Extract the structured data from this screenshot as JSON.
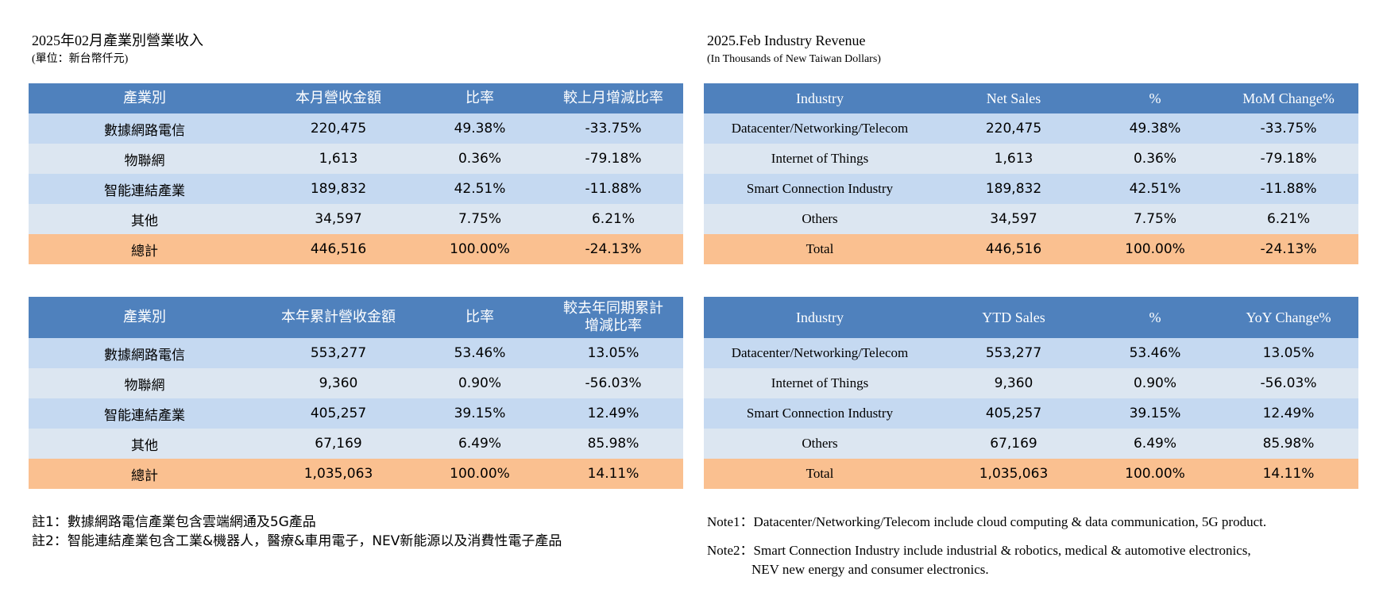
{
  "left": {
    "title": "2025年02月產業別營業收入",
    "unit": "(單位：新台幣仟元)",
    "monthly": {
      "headers": [
        "產業別",
        "本月營收金額",
        "比率",
        "較上月增減比率"
      ],
      "rows": [
        [
          "數據網路電信",
          "220,475",
          "49.38%",
          "-33.75%"
        ],
        [
          "物聯網",
          "1,613",
          "0.36%",
          "-79.18%"
        ],
        [
          "智能連結產業",
          "189,832",
          "42.51%",
          "-11.88%"
        ],
        [
          "其他",
          "34,597",
          "7.75%",
          "6.21%"
        ]
      ],
      "total": [
        "總計",
        "446,516",
        "100.00%",
        "-24.13%"
      ]
    },
    "ytd": {
      "headers": [
        "產業別",
        "本年累計營收金額",
        "比率",
        "較去年同期累計",
        "增減比率"
      ],
      "rows": [
        [
          "數據網路電信",
          "553,277",
          "53.46%",
          "13.05%"
        ],
        [
          "物聯網",
          "9,360",
          "0.90%",
          "-56.03%"
        ],
        [
          "智能連結產業",
          "405,257",
          "39.15%",
          "12.49%"
        ],
        [
          "其他",
          "67,169",
          "6.49%",
          "85.98%"
        ]
      ],
      "total": [
        "總計",
        "1,035,063",
        "100.00%",
        "14.11%"
      ]
    },
    "notes": [
      "註1：數據網路電信產業包含雲端網通及5G產品",
      "註2：智能連結產業包含工業&機器人，醫療&車用電子，NEV新能源以及消費性電子產品"
    ]
  },
  "right": {
    "title": "2025.Feb Industry Revenue",
    "unit": "(In Thousands of New Taiwan Dollars)",
    "monthly": {
      "headers": [
        "Industry",
        "Net Sales",
        "%",
        "MoM Change%"
      ],
      "rows": [
        [
          "Datacenter/Networking/Telecom",
          "220,475",
          "49.38%",
          "-33.75%"
        ],
        [
          "Internet of Things",
          "1,613",
          "0.36%",
          "-79.18%"
        ],
        [
          "Smart Connection Industry",
          "189,832",
          "42.51%",
          "-11.88%"
        ],
        [
          "Others",
          "34,597",
          "7.75%",
          "6.21%"
        ]
      ],
      "total": [
        "Total",
        "446,516",
        "100.00%",
        "-24.13%"
      ]
    },
    "ytd": {
      "headers": [
        "Industry",
        "YTD Sales",
        "%",
        "YoY Change%"
      ],
      "rows": [
        [
          "Datacenter/Networking/Telecom",
          "553,277",
          "53.46%",
          "13.05%"
        ],
        [
          "Internet of Things",
          "9,360",
          "0.90%",
          "-56.03%"
        ],
        [
          "Smart Connection Industry",
          "405,257",
          "39.15%",
          "12.49%"
        ],
        [
          "Others",
          "67,169",
          "6.49%",
          "85.98%"
        ]
      ],
      "total": [
        "Total",
        "1,035,063",
        "100.00%",
        "14.11%"
      ]
    },
    "notes": [
      "Note1：Datacenter/Networking/Telecom include cloud computing & data communication, 5G product.",
      "Note2：Smart Connection Industry include industrial & robotics, medical & automotive electronics,",
      "NEV new energy and consumer electronics."
    ]
  }
}
